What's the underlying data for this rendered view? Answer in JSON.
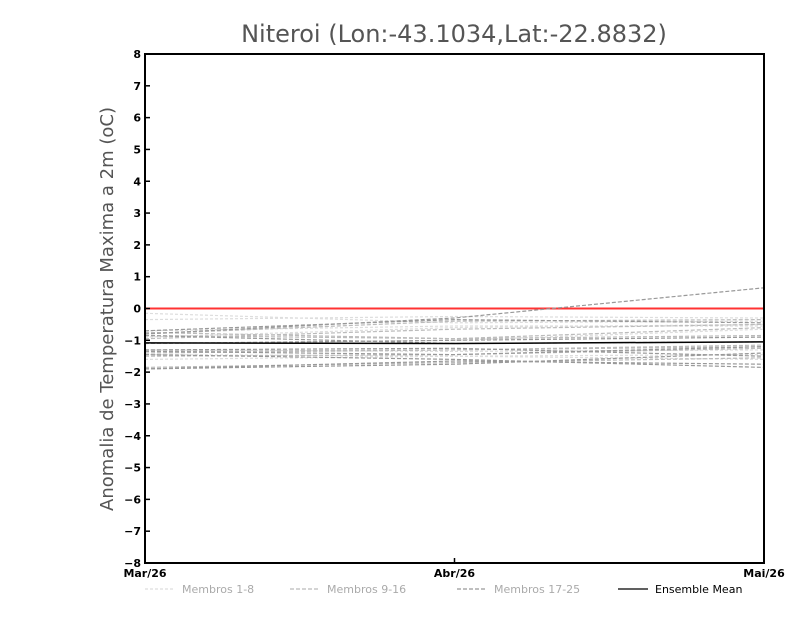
{
  "chart_data": {
    "type": "line",
    "title": "Niteroi (Lon:-43.1034,Lat:-22.8832)",
    "xlabel": "",
    "ylabel": "Anomalia de Temperatura Maxima a 2m (oC)",
    "categories": [
      "Mar/26",
      "Abr/26",
      "Mai/26"
    ],
    "x": [
      0,
      1,
      2
    ],
    "ylim": [
      -8,
      8
    ],
    "yticks": [
      "8",
      "7",
      "6",
      "5",
      "4",
      "3",
      "2",
      "1",
      "0",
      "−1",
      "−2",
      "−3",
      "−4",
      "−5",
      "−6",
      "−7",
      "−8"
    ],
    "ytick_values": [
      8,
      7,
      6,
      5,
      4,
      3,
      2,
      1,
      0,
      -1,
      -2,
      -3,
      -4,
      -5,
      -6,
      -7,
      -8
    ],
    "grid": false,
    "legend_position": "bottom",
    "legend": [
      "Membros 1-8",
      "Membros 9-16",
      "Membros 17-25",
      "Ensemble Mean"
    ],
    "reference_line": {
      "y": 0,
      "color": "#ff3333"
    },
    "groups": [
      {
        "legend": "Membros 1-8",
        "color": "#dddddd",
        "dash": "3,2",
        "series": [
          [
            -0.15,
            -0.45,
            -0.4
          ],
          [
            -0.7,
            -0.55,
            -0.55
          ],
          [
            -0.9,
            -0.6,
            -0.5
          ],
          [
            -1.3,
            -1.35,
            -1.3
          ],
          [
            -1.45,
            -1.5,
            -1.45
          ],
          [
            -1.6,
            -1.5,
            -1.6
          ],
          [
            -1.1,
            -1.0,
            -0.65
          ],
          [
            -0.35,
            -0.25,
            -0.3
          ]
        ]
      },
      {
        "legend": "Membros 9-16",
        "color": "#bbbbbb",
        "dash": "4,2",
        "series": [
          [
            -0.8,
            -0.4,
            -0.35
          ],
          [
            -0.75,
            -0.95,
            -0.6
          ],
          [
            -1.35,
            -1.3,
            -1.2
          ],
          [
            -1.4,
            -1.3,
            -1.15
          ],
          [
            -1.85,
            -1.7,
            -1.55
          ],
          [
            -0.85,
            -0.95,
            -0.85
          ],
          [
            -1.5,
            -1.45,
            -1.25
          ],
          [
            -0.95,
            -0.65,
            -0.5
          ]
        ]
      },
      {
        "legend": "Membros 17-25",
        "color": "#999999",
        "dash": "4,2",
        "series": [
          [
            -0.8,
            -0.3,
            0.65
          ],
          [
            -0.85,
            -1.1,
            -1.05
          ],
          [
            -1.9,
            -1.75,
            -1.4
          ],
          [
            -1.3,
            -1.25,
            -1.5
          ],
          [
            -1.45,
            -1.6,
            -1.85
          ],
          [
            -1.1,
            -1.0,
            -0.9
          ],
          [
            -0.7,
            -0.35,
            -0.45
          ],
          [
            -1.9,
            -1.65,
            -1.75
          ],
          [
            -1.35,
            -1.45,
            -1.2
          ]
        ]
      }
    ],
    "ensemble_mean": {
      "legend": "Ensemble Mean",
      "color": "#000000",
      "values": [
        -1.08,
        -1.1,
        -1.05
      ]
    }
  }
}
